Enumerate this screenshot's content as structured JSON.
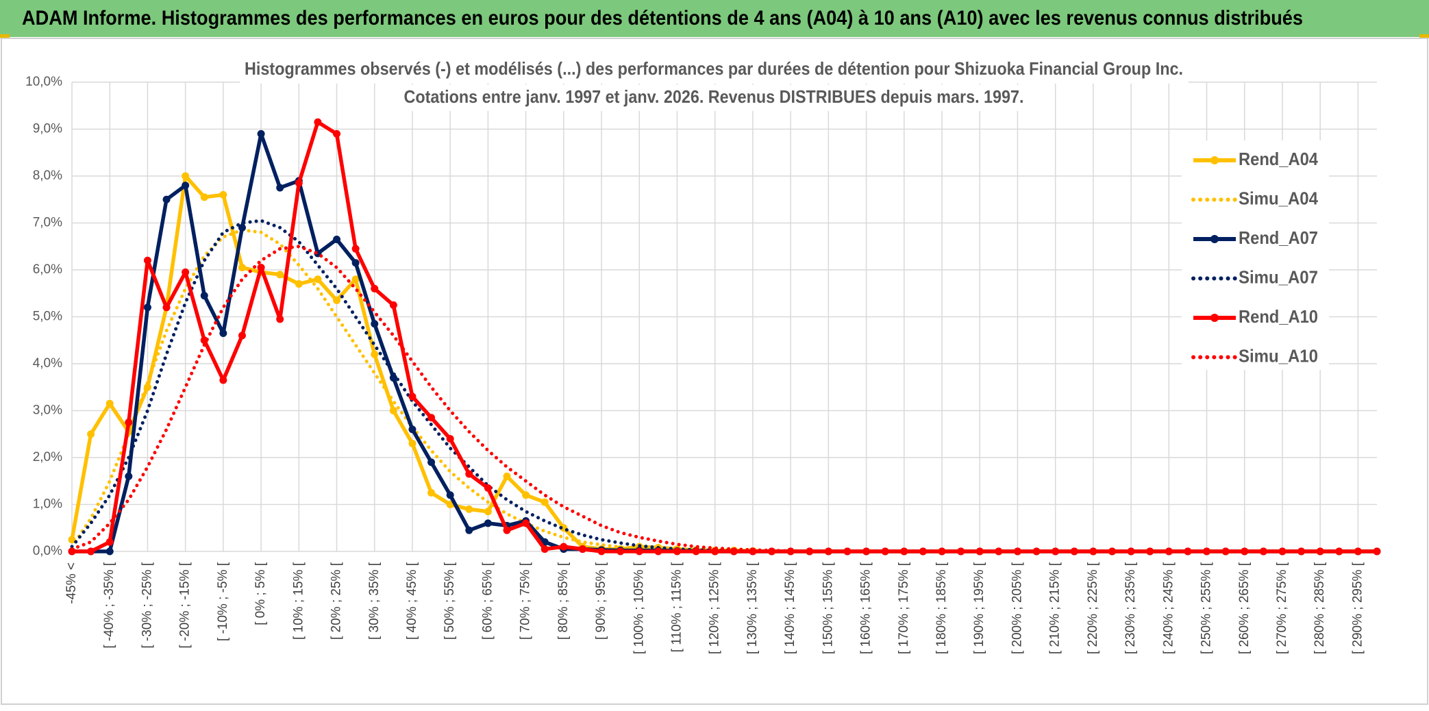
{
  "header": "ADAM Informe. Histogrammes des performances en euros pour des détentions de 4 ans (A04) à 10 ans (A10) avec les revenus connus distribués",
  "chart_data": {
    "type": "line",
    "title": "Histogrammes observés (-) et modélisés (...) des performances par durées de détention pour Shizuoka Financial Group Inc.",
    "subtitle": "Cotations entre janv. 1997 et janv. 2026. Revenus DISTRIBUES depuis mars. 1997.",
    "categories": [
      "-45% <",
      null,
      "[ -40% ; -35% [",
      null,
      "[ -30% ; -25% [",
      null,
      "[ -20% ; -15% [",
      null,
      "[ -10% ; -5% [",
      null,
      "[ 0% ; 5% [",
      null,
      "[ 10% ; 15% [",
      null,
      "[ 20% ; 25% [",
      null,
      "[ 30% ; 35% [",
      null,
      "[ 40% ; 45% [",
      null,
      "[ 50% ; 55% [",
      null,
      "[ 60% ; 65% [",
      null,
      "[ 70% ; 75% [",
      null,
      "[ 80% ; 85% [",
      null,
      "[ 90% ; 95% [",
      null,
      "[ 100% ; 105% [",
      null,
      "[ 110% ; 115% [",
      null,
      "[ 120% ; 125% [",
      null,
      "[ 130% ; 135% [",
      null,
      "[ 140% ; 145% [",
      null,
      "[ 150% ; 155% [",
      null,
      "[ 160% ; 165% [",
      null,
      "[ 170% ; 175% [",
      null,
      "[ 180% ; 185% [",
      null,
      "[ 190% ; 195% [",
      null,
      "[ 200% ; 205% [",
      null,
      "[ 210% ; 215% [",
      null,
      "[ 220% ; 225% [",
      null,
      "[ 230% ; 235% [",
      null,
      "[ 240% ; 245% [",
      null,
      "[ 250% ; 255% [",
      null,
      "[ 260% ; 265% [",
      null,
      "[ 270% ; 275% [",
      null,
      "[ 280% ; 285% [",
      null,
      "[ 290% ; 295% [",
      null
    ],
    "series": [
      {
        "name": "Rend_A04",
        "color": "#ffc000",
        "dashed": false,
        "markers": true,
        "values": [
          0.25,
          2.5,
          3.15,
          2.55,
          3.5,
          5.2,
          8.0,
          7.55,
          7.6,
          6.05,
          5.95,
          5.9,
          5.7,
          5.8,
          5.35,
          5.8,
          4.2,
          3.0,
          2.3,
          1.25,
          1.0,
          0.9,
          0.85,
          1.6,
          1.2,
          1.05,
          0.5,
          0.1,
          0.05,
          0.05,
          0.1,
          0.08,
          0.05,
          0.03,
          0.02,
          0.02,
          0.01,
          0,
          0,
          0,
          0,
          0,
          0,
          0,
          0,
          0,
          0,
          0,
          0,
          0,
          0,
          0,
          0,
          0,
          0,
          0,
          0,
          0,
          0,
          0,
          0,
          0,
          0,
          0,
          0,
          0,
          0,
          0,
          0,
          0
        ]
      },
      {
        "name": "Simu_A04",
        "color": "#ffc000",
        "dashed": true,
        "markers": false,
        "values": [
          0.1,
          0.7,
          1.5,
          2.5,
          3.6,
          4.7,
          5.6,
          6.3,
          6.7,
          6.85,
          6.8,
          6.55,
          6.1,
          5.6,
          5.0,
          4.4,
          3.8,
          3.2,
          2.65,
          2.15,
          1.7,
          1.35,
          1.05,
          0.8,
          0.6,
          0.43,
          0.3,
          0.2,
          0.14,
          0.09,
          0.06,
          0.04,
          0.02,
          0.01,
          0,
          0,
          0,
          0,
          0,
          0,
          0,
          0,
          0,
          0,
          0,
          0,
          0,
          0,
          0,
          0,
          0,
          0,
          0,
          0,
          0,
          0,
          0,
          0,
          0,
          0,
          0,
          0,
          0,
          0,
          0,
          0,
          0,
          0,
          0,
          0
        ]
      },
      {
        "name": "Rend_A07",
        "color": "#002060",
        "dashed": false,
        "markers": true,
        "values": [
          0,
          0,
          0,
          1.6,
          5.2,
          7.5,
          7.8,
          5.45,
          4.65,
          6.9,
          8.9,
          7.75,
          7.9,
          6.35,
          6.65,
          6.15,
          4.85,
          3.7,
          2.6,
          1.9,
          1.2,
          0.45,
          0.6,
          0.55,
          0.65,
          0.2,
          0.05,
          0.05,
          0.03,
          0.02,
          0.02,
          0.02,
          0.01,
          0.01,
          0,
          0,
          0,
          0,
          0,
          0,
          0,
          0,
          0,
          0,
          0,
          0,
          0,
          0,
          0,
          0,
          0,
          0,
          0,
          0,
          0,
          0,
          0,
          0,
          0,
          0,
          0,
          0,
          0,
          0,
          0,
          0,
          0,
          0,
          0,
          0
        ]
      },
      {
        "name": "Simu_A07",
        "color": "#002060",
        "dashed": true,
        "markers": false,
        "values": [
          0.1,
          0.6,
          1.2,
          2.0,
          3.0,
          4.2,
          5.3,
          6.2,
          6.8,
          7.0,
          7.05,
          6.9,
          6.6,
          6.1,
          5.6,
          5.0,
          4.4,
          3.8,
          3.2,
          2.7,
          2.2,
          1.8,
          1.4,
          1.1,
          0.85,
          0.65,
          0.48,
          0.35,
          0.25,
          0.18,
          0.12,
          0.08,
          0.05,
          0.03,
          0.02,
          0.01,
          0,
          0,
          0,
          0,
          0,
          0,
          0,
          0,
          0,
          0,
          0,
          0,
          0,
          0,
          0,
          0,
          0,
          0,
          0,
          0,
          0,
          0,
          0,
          0,
          0,
          0,
          0,
          0,
          0,
          0,
          0,
          0,
          0,
          0
        ]
      },
      {
        "name": "Rend_A10",
        "color": "#ff0000",
        "dashed": false,
        "markers": true,
        "values": [
          0,
          0,
          0.2,
          2.75,
          6.2,
          5.2,
          5.95,
          4.5,
          3.65,
          4.6,
          6.05,
          4.95,
          7.85,
          9.15,
          8.9,
          6.45,
          5.6,
          5.25,
          3.3,
          2.85,
          2.4,
          1.65,
          1.35,
          0.45,
          0.6,
          0.05,
          0.1,
          0.05,
          0,
          0,
          0,
          0,
          0,
          0,
          0,
          0,
          0,
          0,
          0,
          0,
          0,
          0,
          0,
          0,
          0,
          0,
          0,
          0,
          0,
          0,
          0,
          0,
          0,
          0,
          0,
          0,
          0,
          0,
          0,
          0,
          0,
          0,
          0,
          0,
          0,
          0,
          0,
          0,
          0,
          0
        ]
      },
      {
        "name": "Simu_A10",
        "color": "#ff0000",
        "dashed": true,
        "markers": false,
        "values": [
          0.05,
          0.2,
          0.6,
          1.1,
          1.8,
          2.6,
          3.5,
          4.4,
          5.2,
          5.8,
          6.2,
          6.45,
          6.5,
          6.35,
          6.05,
          5.6,
          5.1,
          4.6,
          4.05,
          3.5,
          3.0,
          2.55,
          2.15,
          1.8,
          1.5,
          1.2,
          0.95,
          0.75,
          0.55,
          0.4,
          0.3,
          0.22,
          0.15,
          0.1,
          0.07,
          0.05,
          0.03,
          0.02,
          0.01,
          0,
          0,
          0,
          0,
          0,
          0,
          0,
          0,
          0,
          0,
          0,
          0,
          0,
          0,
          0,
          0,
          0,
          0,
          0,
          0,
          0,
          0,
          0,
          0,
          0,
          0,
          0,
          0,
          0,
          0,
          0
        ]
      }
    ],
    "ylim": [
      0,
      10
    ],
    "yticks": [
      {
        "value": 0,
        "label": "0,0%"
      },
      {
        "value": 1,
        "label": "1,0%"
      },
      {
        "value": 2,
        "label": "2,0%"
      },
      {
        "value": 3,
        "label": "3,0%"
      },
      {
        "value": 4,
        "label": "4,0%"
      },
      {
        "value": 5,
        "label": "5,0%"
      },
      {
        "value": 6,
        "label": "6,0%"
      },
      {
        "value": 7,
        "label": "7,0%"
      },
      {
        "value": 8,
        "label": "8,0%"
      },
      {
        "value": 9,
        "label": "9,0%"
      },
      {
        "value": 10,
        "label": "10,0%"
      }
    ],
    "grid": true,
    "xgrid": true,
    "legend": "right"
  }
}
